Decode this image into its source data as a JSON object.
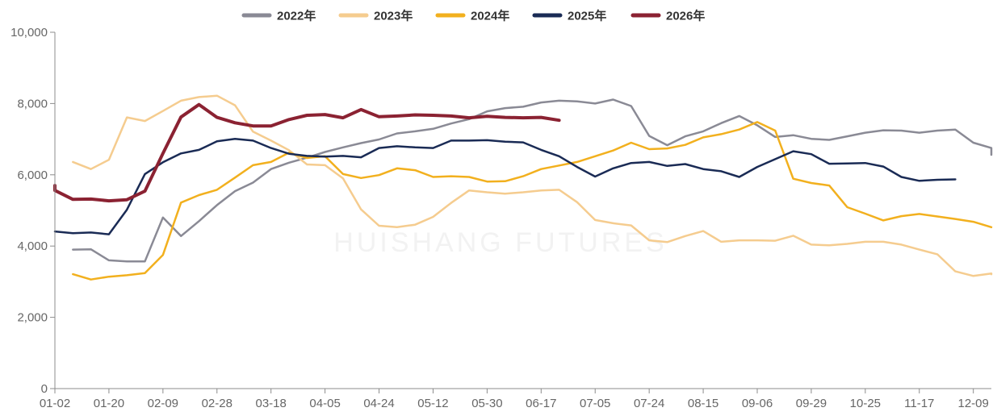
{
  "watermark": "HUISHANG FUTURES",
  "chart_data": {
    "type": "line",
    "x_ticks": [
      "01-02",
      "01-20",
      "02-09",
      "02-28",
      "03-18",
      "04-05",
      "04-24",
      "05-12",
      "05-30",
      "06-17",
      "07-05",
      "07-24",
      "08-15",
      "09-06",
      "09-29",
      "10-25",
      "11-17",
      "12-09"
    ],
    "x_points": 52,
    "ylim": [
      0,
      10000
    ],
    "y_ticks": [
      "0",
      "2,000",
      "4,000",
      "6,000",
      "8,000",
      "10,000"
    ],
    "y_tick_values": [
      0,
      2000,
      4000,
      6000,
      8000,
      10000
    ],
    "legend_position": "top-center",
    "series": [
      {
        "name": "2022年",
        "color": "#8a8a95",
        "width": 2.5,
        "start": 1,
        "values": [
          3900,
          3910,
          3600,
          3570,
          3570,
          4800,
          4280,
          4700,
          5150,
          5540,
          5780,
          6160,
          6340,
          6480,
          6640,
          6770,
          6890,
          6990,
          7160,
          7220,
          7290,
          7440,
          7560,
          7780,
          7870,
          7910,
          8030,
          8080,
          8060,
          8000,
          8110,
          7930,
          7090,
          6830,
          7080,
          7220,
          7450,
          7650,
          7390,
          7060,
          7110,
          7010,
          6980,
          7080,
          7180,
          7250,
          7240,
          7180,
          7240,
          7270,
          6900,
          6750,
          6560
        ]
      },
      {
        "name": "2023年",
        "color": "#f5cc8f",
        "width": 2.5,
        "start": 1,
        "values": [
          6360,
          6160,
          6420,
          7610,
          7510,
          7790,
          8080,
          8180,
          8220,
          7950,
          7210,
          6960,
          6690,
          6290,
          6270,
          5900,
          5030,
          4570,
          4530,
          4600,
          4820,
          5210,
          5560,
          5510,
          5470,
          5510,
          5560,
          5580,
          5230,
          4730,
          4640,
          4580,
          4160,
          4110,
          4280,
          4420,
          4120,
          4160,
          4160,
          4150,
          4290,
          4040,
          4020,
          4060,
          4120,
          4120,
          4040,
          3900,
          3770,
          3290,
          3160,
          3230,
          3210
        ]
      },
      {
        "name": "2024年",
        "color": "#f2b01e",
        "width": 2.5,
        "start": 1,
        "values": [
          3210,
          3060,
          3140,
          3180,
          3240,
          3750,
          5220,
          5430,
          5580,
          5920,
          6270,
          6360,
          6620,
          6470,
          6520,
          6020,
          5910,
          5990,
          6180,
          6130,
          5940,
          5960,
          5940,
          5810,
          5820,
          5960,
          6160,
          6260,
          6360,
          6520,
          6680,
          6900,
          6720,
          6740,
          6840,
          7050,
          7140,
          7270,
          7480,
          7240,
          5890,
          5770,
          5700,
          5090,
          4910,
          4720,
          4840,
          4900,
          4830,
          4760,
          4680,
          4530
        ]
      },
      {
        "name": "2025年",
        "color": "#1a2b55",
        "width": 2.5,
        "start": 0,
        "values": [
          4410,
          4360,
          4380,
          4330,
          5020,
          6020,
          6350,
          6600,
          6700,
          6940,
          7010,
          6960,
          6750,
          6590,
          6530,
          6510,
          6530,
          6490,
          6750,
          6800,
          6770,
          6750,
          6960,
          6960,
          6970,
          6930,
          6910,
          6700,
          6520,
          6220,
          5950,
          6180,
          6330,
          6360,
          6250,
          6300,
          6160,
          6100,
          5940,
          6220,
          6440,
          6660,
          6580,
          6310,
          6320,
          6330,
          6230,
          5940,
          5830,
          5860,
          5870
        ]
      },
      {
        "name": "2026年",
        "color": "#8b2232",
        "width": 4,
        "start": -1,
        "values": [
          5700,
          5560,
          5310,
          5320,
          5270,
          5300,
          5540,
          6600,
          7620,
          7970,
          7610,
          7460,
          7370,
          7370,
          7550,
          7670,
          7690,
          7600,
          7830,
          7630,
          7650,
          7680,
          7670,
          7650,
          7600,
          7640,
          7610,
          7600,
          7610,
          7530
        ]
      }
    ]
  }
}
